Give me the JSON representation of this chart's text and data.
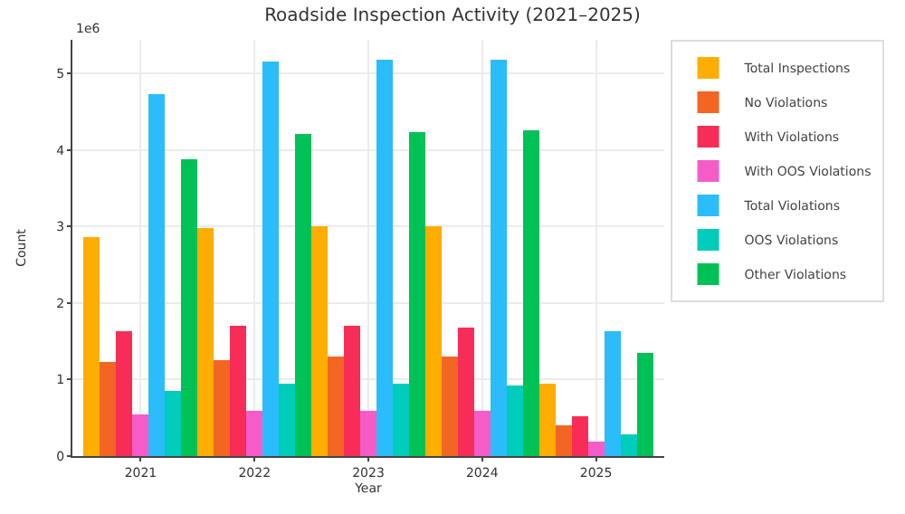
{
  "chart_data": {
    "type": "bar",
    "title": "Roadside Inspection Activity (2021–2025)",
    "xlabel": "Year",
    "ylabel": "Count",
    "categories": [
      "2021",
      "2022",
      "2023",
      "2024",
      "2025"
    ],
    "series": [
      {
        "name": "Total Inspections",
        "color": "#ffae00",
        "values": [
          2.87,
          2.98,
          3.01,
          3.0,
          0.94
        ]
      },
      {
        "name": "No Violations",
        "color": "#f26522",
        "values": [
          1.24,
          1.26,
          1.3,
          1.31,
          0.4
        ]
      },
      {
        "name": "With Violations",
        "color": "#f72d57",
        "values": [
          1.63,
          1.71,
          1.71,
          1.69,
          0.53
        ]
      },
      {
        "name": "With OOS Violations",
        "color": "#f55cc8",
        "values": [
          0.55,
          0.6,
          0.59,
          0.58,
          0.18
        ]
      },
      {
        "name": "Total Violations",
        "color": "#2bbcfb",
        "values": [
          4.74,
          5.15,
          5.17,
          5.19,
          1.63
        ]
      },
      {
        "name": "OOS Violations",
        "color": "#00ccbb",
        "values": [
          0.86,
          0.94,
          0.94,
          0.92,
          0.29
        ]
      },
      {
        "name": "Other Violations",
        "color": "#00c156",
        "values": [
          3.87,
          4.2,
          4.23,
          4.26,
          1.35
        ]
      }
    ],
    "ylim": [
      0,
      5.44
    ],
    "yticks": [
      0,
      1,
      2,
      3,
      4,
      5
    ],
    "annotations": [
      "1e6"
    ],
    "grid": true,
    "legend": "right"
  }
}
